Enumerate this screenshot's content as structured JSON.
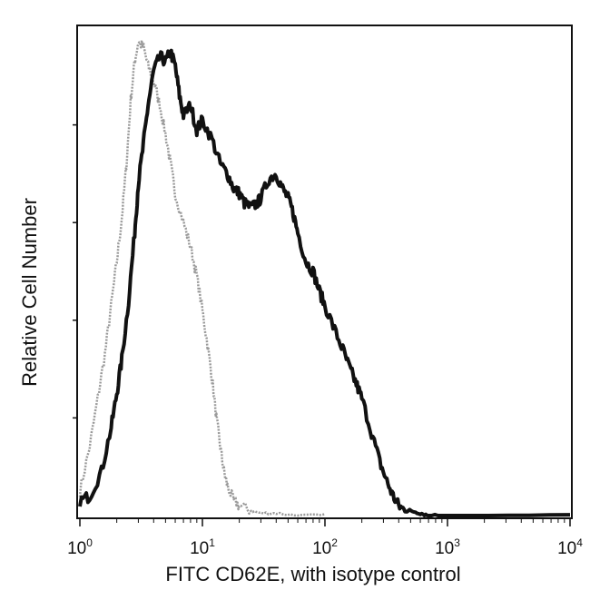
{
  "chart_data": {
    "type": "line",
    "title": "",
    "xlabel": "FITC  CD62E,  with isotype control",
    "ylabel": "Relative Cell Number",
    "x_scale": "log",
    "xlim": [
      1,
      10000
    ],
    "ylim": [
      0,
      100
    ],
    "x_ticks": [
      {
        "base": "10",
        "exp": "0",
        "value": 1
      },
      {
        "base": "10",
        "exp": "1",
        "value": 10
      },
      {
        "base": "10",
        "exp": "2",
        "value": 100
      },
      {
        "base": "10",
        "exp": "3",
        "value": 1000
      },
      {
        "base": "10",
        "exp": "4",
        "value": 10000
      }
    ],
    "y_ticks_unlabeled": [
      20,
      40,
      60,
      80
    ],
    "grid": false,
    "legend": null,
    "series": [
      {
        "role": "isotype-control",
        "color": "#9a9a9a",
        "x": [
          1.0,
          1.2,
          1.4,
          1.6,
          1.8,
          2.0,
          2.2,
          2.4,
          2.6,
          2.8,
          3.0,
          3.3,
          3.6,
          4.0,
          4.5,
          5.0,
          5.5,
          6.0,
          7.0,
          8.0,
          9.0,
          10.0,
          11.0,
          12.0,
          13.0,
          14.0,
          15.0,
          16.0,
          18.0,
          20.0,
          25.0,
          30.0,
          40.0,
          60.0,
          100.0
        ],
        "y": [
          5,
          14,
          24,
          33,
          43,
          52,
          61,
          72,
          85,
          93,
          97,
          96,
          92,
          89,
          84,
          78,
          72,
          66,
          60,
          55,
          49,
          42,
          35,
          28,
          20,
          14,
          9,
          6,
          3,
          2,
          1,
          0.5,
          0.5,
          0,
          0
        ]
      },
      {
        "role": "CD62E",
        "color": "#111111",
        "x": [
          1.0,
          1.2,
          1.5,
          1.8,
          2.0,
          2.2,
          2.5,
          2.8,
          3.0,
          3.3,
          3.6,
          4.0,
          4.5,
          5.0,
          5.5,
          6.0,
          6.5,
          7.0,
          8.0,
          9.0,
          10.0,
          12.0,
          14.0,
          16.0,
          18.0,
          20.0,
          22.0,
          25.0,
          28.0,
          30.0,
          35.0,
          40.0,
          45.0,
          50.0,
          55.0,
          60.0,
          70.0,
          80.0,
          90.0,
          100.0,
          120.0,
          140.0,
          160.0,
          180.0,
          200.0,
          240.0,
          280.0,
          320.0,
          360.0,
          400.0,
          450.0,
          500.0,
          600.0,
          700.0,
          1000.0,
          10000.0
        ],
        "y": [
          3,
          4,
          9,
          18,
          25,
          32,
          44,
          58,
          68,
          76,
          84,
          91,
          94,
          93,
          95,
          92,
          86,
          82,
          84,
          79,
          81,
          77,
          72,
          70,
          67,
          66,
          64,
          63,
          64,
          65,
          69,
          70,
          67,
          65,
          62,
          58,
          52,
          50,
          46,
          43,
          38,
          34,
          30,
          27,
          24,
          17,
          11,
          7,
          4,
          2,
          1,
          1,
          0.5,
          0,
          0,
          0
        ]
      }
    ]
  }
}
